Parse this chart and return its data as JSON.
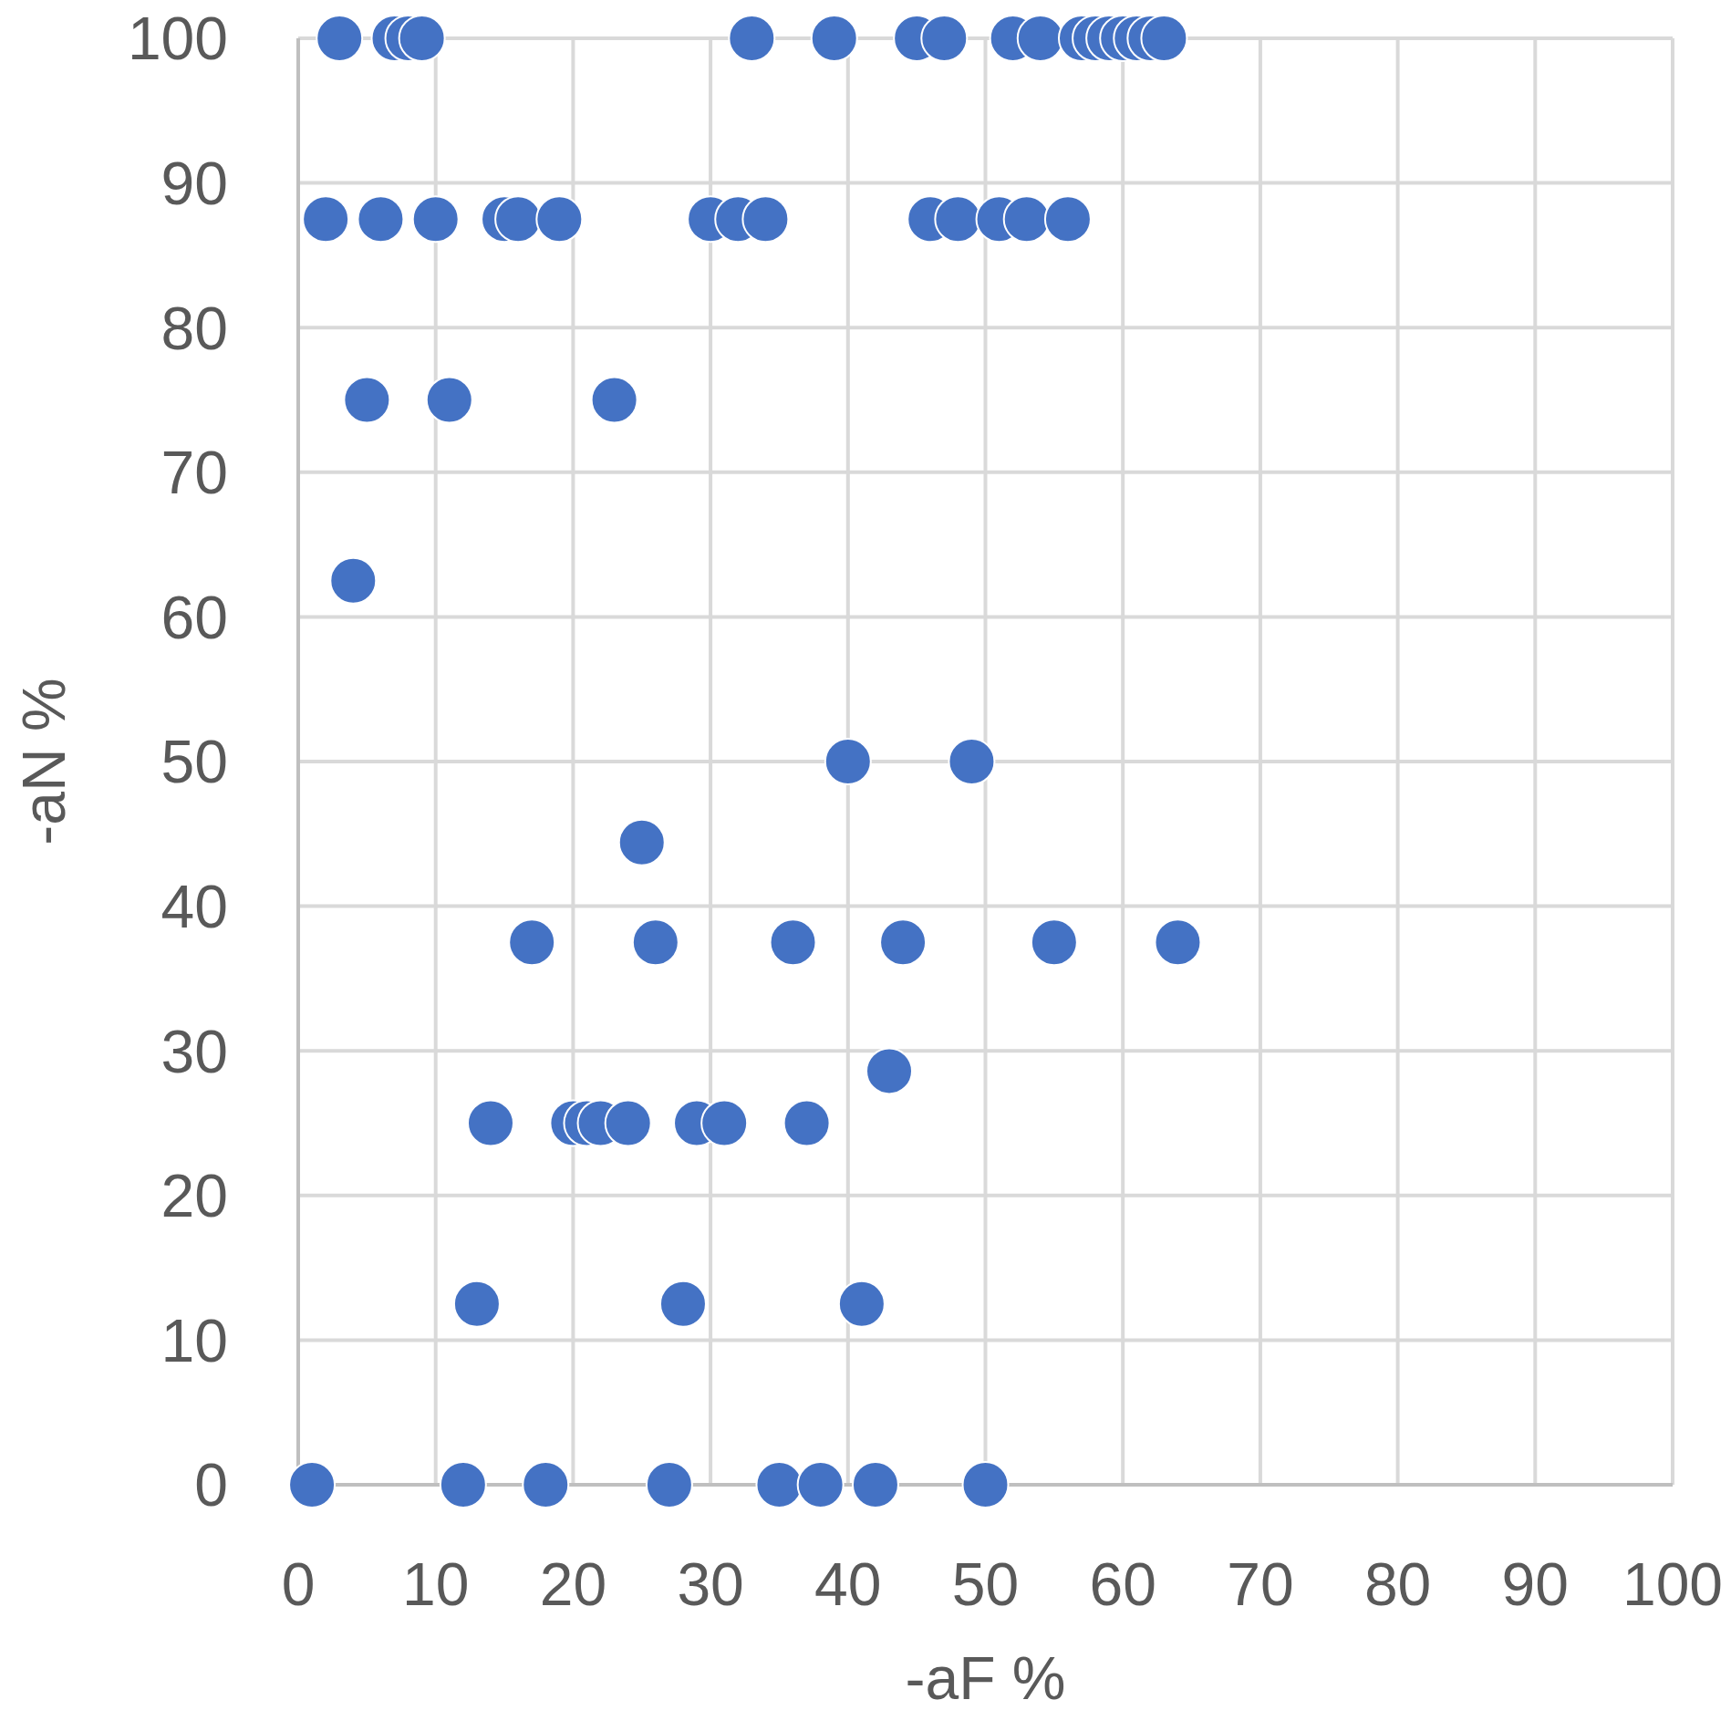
{
  "chart_data": {
    "type": "scatter",
    "xlabel": "-aF %",
    "ylabel": "-aN %",
    "x": [
      3,
      7,
      8,
      9,
      33,
      39,
      45,
      47,
      52,
      54,
      57,
      58,
      59,
      60,
      61,
      62,
      63,
      2,
      6,
      10,
      15,
      16,
      19,
      30,
      32,
      34,
      46,
      48,
      51,
      53,
      56,
      5,
      11,
      23,
      4,
      40,
      49,
      25,
      17,
      26,
      36,
      44,
      55,
      64,
      43,
      14,
      20,
      21,
      22,
      24,
      29,
      31,
      37,
      13,
      28,
      41,
      1,
      12,
      18,
      27,
      35,
      38,
      42,
      50
    ],
    "values": [
      100,
      100,
      100,
      100,
      100,
      100,
      100,
      100,
      100,
      100,
      100,
      100,
      100,
      100,
      100,
      100,
      100,
      87.5,
      87.5,
      87.5,
      87.5,
      87.5,
      87.5,
      87.5,
      87.5,
      87.5,
      87.5,
      87.5,
      87.5,
      87.5,
      87.5,
      75,
      75,
      75,
      62.5,
      50,
      50,
      44.4,
      37.5,
      37.5,
      37.5,
      37.5,
      37.5,
      37.5,
      28.6,
      25,
      25,
      25,
      25,
      25,
      25,
      25,
      25,
      12.5,
      12.5,
      12.5,
      0,
      0,
      0,
      0,
      0,
      0,
      0,
      0
    ],
    "color": "#4472c4",
    "marker": "circle",
    "xlim": [
      0,
      100
    ],
    "ylim": [
      0,
      100
    ],
    "xticks": [
      0,
      10,
      20,
      30,
      40,
      50,
      60,
      70,
      80,
      90,
      100
    ],
    "yticks": [
      0,
      10,
      20,
      30,
      40,
      50,
      60,
      70,
      80,
      90,
      100
    ],
    "grid": true
  }
}
